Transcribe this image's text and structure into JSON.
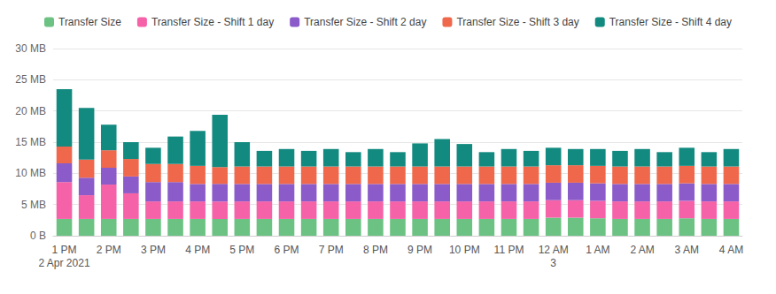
{
  "chart_data": {
    "type": "bar",
    "stacked": true,
    "grid": true,
    "legend": "top",
    "categories": [
      "1 PM\n2 Apr 2021",
      null,
      "2 PM",
      null,
      "3 PM",
      null,
      "4 PM",
      null,
      "5 PM",
      null,
      "6 PM",
      null,
      "7 PM",
      null,
      "8 PM",
      null,
      "9 PM",
      null,
      "10 PM",
      null,
      "11 PM",
      null,
      "12 AM\n3",
      null,
      "1 AM",
      null,
      "2 AM",
      null,
      "3 AM",
      null,
      "4 AM"
    ],
    "ylim": [
      0,
      30
    ],
    "yticks": [
      {
        "value": 0,
        "label": "0 B"
      },
      {
        "value": 5,
        "label": "5 MB"
      },
      {
        "value": 10,
        "label": "10 MB"
      },
      {
        "value": 15,
        "label": "15 MB"
      },
      {
        "value": 20,
        "label": "20 MB"
      },
      {
        "value": 25,
        "label": "25 MB"
      },
      {
        "value": 30,
        "label": "30 MB"
      }
    ],
    "series": [
      {
        "name": "Transfer Size",
        "color": "#6cc283",
        "values": [
          2.7,
          2.7,
          2.7,
          2.7,
          2.7,
          2.7,
          2.7,
          2.7,
          2.7,
          2.7,
          2.7,
          2.7,
          2.7,
          2.7,
          2.7,
          2.7,
          2.7,
          2.7,
          2.7,
          2.7,
          2.7,
          2.7,
          2.9,
          2.9,
          2.8,
          2.7,
          2.7,
          2.7,
          2.8,
          2.7,
          2.7
        ]
      },
      {
        "name": "Transfer Size - Shift 1 day",
        "color": "#f562a8",
        "values": [
          5.9,
          3.8,
          5.5,
          4.1,
          2.8,
          2.8,
          2.8,
          2.8,
          2.8,
          2.8,
          2.8,
          2.8,
          2.8,
          2.8,
          2.8,
          2.8,
          2.8,
          2.8,
          2.8,
          2.8,
          2.8,
          2.8,
          2.8,
          2.8,
          2.8,
          2.8,
          2.8,
          2.8,
          2.8,
          2.8,
          2.8
        ]
      },
      {
        "name": "Transfer Size - Shift 2 day",
        "color": "#8a5bc9",
        "values": [
          3.0,
          2.8,
          2.7,
          2.7,
          3.1,
          3.1,
          2.8,
          2.8,
          2.8,
          2.8,
          2.8,
          2.8,
          2.8,
          2.8,
          2.8,
          2.8,
          2.8,
          2.8,
          2.8,
          2.8,
          2.8,
          2.8,
          2.8,
          2.8,
          2.8,
          2.8,
          2.8,
          2.8,
          2.8,
          2.8,
          2.8
        ]
      },
      {
        "name": "Transfer Size - Shift 3 day",
        "color": "#f0684b",
        "values": [
          2.7,
          2.9,
          2.8,
          2.8,
          2.9,
          2.9,
          2.9,
          2.7,
          2.8,
          2.8,
          2.8,
          2.8,
          2.8,
          2.8,
          2.8,
          2.8,
          2.8,
          2.8,
          2.8,
          2.8,
          2.8,
          2.8,
          2.8,
          2.8,
          2.8,
          2.8,
          2.8,
          2.8,
          2.8,
          2.8,
          2.8
        ]
      },
      {
        "name": "Transfer Size - Shift 4 day",
        "color": "#128a80",
        "values": [
          9.2,
          8.3,
          4.1,
          2.7,
          2.6,
          4.4,
          5.6,
          8.4,
          3.9,
          2.5,
          2.8,
          2.5,
          2.8,
          2.3,
          2.8,
          2.3,
          3.7,
          4.4,
          3.6,
          2.3,
          2.8,
          2.5,
          2.8,
          2.6,
          2.7,
          2.5,
          2.8,
          2.3,
          2.9,
          2.3,
          2.8
        ]
      }
    ]
  }
}
